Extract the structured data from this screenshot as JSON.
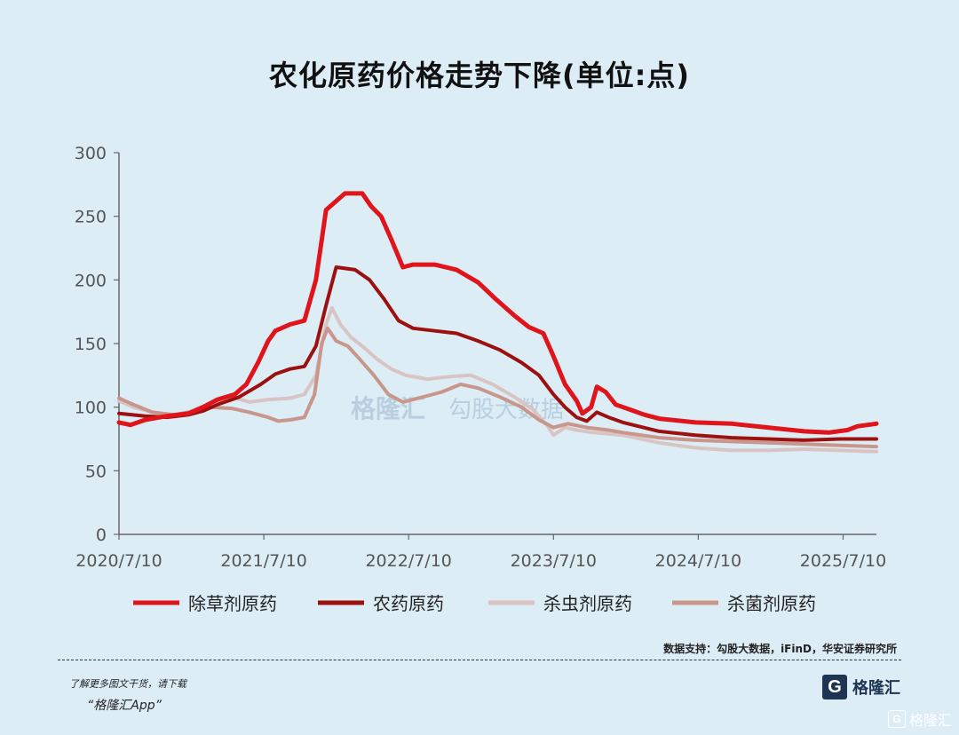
{
  "chart_data": {
    "type": "line",
    "title": "农化原药价格走势下降(单位:点)",
    "ylim": [
      0,
      300
    ],
    "y_ticks": [
      0,
      50,
      100,
      150,
      200,
      250,
      300
    ],
    "x_tick_labels": [
      "2020/7/10",
      "2021/7/10",
      "2022/7/10",
      "2023/7/10",
      "2024/7/10",
      "2025/7/10"
    ],
    "x_tick_positions": [
      2020.52,
      2021.52,
      2022.52,
      2023.52,
      2024.52,
      2025.52
    ],
    "xlim": [
      2020.52,
      2025.75
    ],
    "grid": false,
    "legend_position": "bottom",
    "series": [
      {
        "name": "除草剂原药",
        "color": "#e0141b",
        "width": 5,
        "points": [
          [
            2020.52,
            88
          ],
          [
            2020.6,
            86
          ],
          [
            2020.7,
            90
          ],
          [
            2020.85,
            93
          ],
          [
            2021.0,
            95
          ],
          [
            2021.1,
            100
          ],
          [
            2021.2,
            106
          ],
          [
            2021.32,
            110
          ],
          [
            2021.4,
            118
          ],
          [
            2021.48,
            135
          ],
          [
            2021.55,
            152
          ],
          [
            2021.6,
            160
          ],
          [
            2021.7,
            165
          ],
          [
            2021.8,
            168
          ],
          [
            2021.88,
            200
          ],
          [
            2021.95,
            255
          ],
          [
            2022.02,
            262
          ],
          [
            2022.08,
            268
          ],
          [
            2022.2,
            268
          ],
          [
            2022.26,
            258
          ],
          [
            2022.33,
            250
          ],
          [
            2022.4,
            232
          ],
          [
            2022.48,
            210
          ],
          [
            2022.55,
            212
          ],
          [
            2022.7,
            212
          ],
          [
            2022.85,
            208
          ],
          [
            2023.0,
            198
          ],
          [
            2023.12,
            185
          ],
          [
            2023.25,
            172
          ],
          [
            2023.35,
            163
          ],
          [
            2023.45,
            158
          ],
          [
            2023.52,
            140
          ],
          [
            2023.6,
            118
          ],
          [
            2023.68,
            105
          ],
          [
            2023.72,
            95
          ],
          [
            2023.78,
            100
          ],
          [
            2023.82,
            116
          ],
          [
            2023.88,
            112
          ],
          [
            2023.95,
            102
          ],
          [
            2024.05,
            98
          ],
          [
            2024.15,
            94
          ],
          [
            2024.25,
            91
          ],
          [
            2024.5,
            88
          ],
          [
            2024.75,
            87
          ],
          [
            2025.0,
            84
          ],
          [
            2025.25,
            81
          ],
          [
            2025.42,
            80
          ],
          [
            2025.55,
            82
          ],
          [
            2025.62,
            85
          ],
          [
            2025.75,
            87
          ]
        ]
      },
      {
        "name": "农药原药",
        "color": "#9c1010",
        "width": 4,
        "points": [
          [
            2020.52,
            95
          ],
          [
            2020.7,
            93
          ],
          [
            2020.85,
            92
          ],
          [
            2021.0,
            94
          ],
          [
            2021.1,
            97
          ],
          [
            2021.2,
            102
          ],
          [
            2021.35,
            108
          ],
          [
            2021.5,
            118
          ],
          [
            2021.6,
            126
          ],
          [
            2021.7,
            130
          ],
          [
            2021.8,
            132
          ],
          [
            2021.88,
            148
          ],
          [
            2021.95,
            180
          ],
          [
            2022.02,
            210
          ],
          [
            2022.15,
            208
          ],
          [
            2022.25,
            200
          ],
          [
            2022.35,
            185
          ],
          [
            2022.45,
            168
          ],
          [
            2022.55,
            162
          ],
          [
            2022.7,
            160
          ],
          [
            2022.85,
            158
          ],
          [
            2023.0,
            152
          ],
          [
            2023.15,
            145
          ],
          [
            2023.3,
            135
          ],
          [
            2023.42,
            125
          ],
          [
            2023.52,
            110
          ],
          [
            2023.6,
            100
          ],
          [
            2023.68,
            92
          ],
          [
            2023.75,
            89
          ],
          [
            2023.82,
            96
          ],
          [
            2023.9,
            92
          ],
          [
            2024.0,
            88
          ],
          [
            2024.25,
            81
          ],
          [
            2024.5,
            78
          ],
          [
            2024.75,
            76
          ],
          [
            2025.0,
            75
          ],
          [
            2025.25,
            74
          ],
          [
            2025.5,
            75
          ],
          [
            2025.75,
            75
          ]
        ]
      },
      {
        "name": "杀虫剂原药",
        "color": "#d9c4c4",
        "width": 4,
        "points": [
          [
            2020.52,
            105
          ],
          [
            2020.62,
            100
          ],
          [
            2020.75,
            96
          ],
          [
            2020.9,
            94
          ],
          [
            2021.0,
            96
          ],
          [
            2021.15,
            103
          ],
          [
            2021.3,
            108
          ],
          [
            2021.42,
            104
          ],
          [
            2021.55,
            106
          ],
          [
            2021.7,
            107
          ],
          [
            2021.8,
            110
          ],
          [
            2021.88,
            125
          ],
          [
            2021.95,
            165
          ],
          [
            2021.99,
            178
          ],
          [
            2022.05,
            165
          ],
          [
            2022.12,
            155
          ],
          [
            2022.2,
            148
          ],
          [
            2022.3,
            138
          ],
          [
            2022.4,
            130
          ],
          [
            2022.5,
            125
          ],
          [
            2022.65,
            122
          ],
          [
            2022.8,
            124
          ],
          [
            2022.95,
            125
          ],
          [
            2023.1,
            118
          ],
          [
            2023.25,
            108
          ],
          [
            2023.38,
            98
          ],
          [
            2023.48,
            85
          ],
          [
            2023.52,
            78
          ],
          [
            2023.6,
            84
          ],
          [
            2023.68,
            82
          ],
          [
            2023.8,
            80
          ],
          [
            2024.0,
            78
          ],
          [
            2024.25,
            72
          ],
          [
            2024.5,
            68
          ],
          [
            2024.75,
            66
          ],
          [
            2025.0,
            66
          ],
          [
            2025.25,
            67
          ],
          [
            2025.5,
            66
          ],
          [
            2025.75,
            65
          ]
        ]
      },
      {
        "name": "杀菌剂原药",
        "color": "#c9968b",
        "width": 4,
        "points": [
          [
            2020.52,
            107
          ],
          [
            2020.62,
            102
          ],
          [
            2020.75,
            96
          ],
          [
            2020.9,
            94
          ],
          [
            2021.0,
            96
          ],
          [
            2021.15,
            100
          ],
          [
            2021.3,
            99
          ],
          [
            2021.42,
            96
          ],
          [
            2021.55,
            92
          ],
          [
            2021.62,
            89
          ],
          [
            2021.7,
            90
          ],
          [
            2021.8,
            92
          ],
          [
            2021.87,
            110
          ],
          [
            2021.92,
            150
          ],
          [
            2021.96,
            162
          ],
          [
            2022.02,
            152
          ],
          [
            2022.1,
            148
          ],
          [
            2022.18,
            138
          ],
          [
            2022.28,
            125
          ],
          [
            2022.38,
            110
          ],
          [
            2022.48,
            104
          ],
          [
            2022.62,
            108
          ],
          [
            2022.75,
            112
          ],
          [
            2022.88,
            118
          ],
          [
            2023.0,
            115
          ],
          [
            2023.15,
            108
          ],
          [
            2023.3,
            100
          ],
          [
            2023.42,
            90
          ],
          [
            2023.52,
            84
          ],
          [
            2023.62,
            87
          ],
          [
            2023.75,
            84
          ],
          [
            2023.9,
            82
          ],
          [
            2024.0,
            80
          ],
          [
            2024.25,
            76
          ],
          [
            2024.5,
            74
          ],
          [
            2024.75,
            73
          ],
          [
            2025.0,
            72
          ],
          [
            2025.25,
            71
          ],
          [
            2025.5,
            70
          ],
          [
            2025.75,
            69
          ]
        ]
      }
    ],
    "watermark": {
      "brand": "格隆汇",
      "brand2": "勾股大数据"
    }
  },
  "source_label": "数据支持：勾股大数据，iFinD，华安证券研究所",
  "footer": {
    "note": "了解更多图文干货，请下载",
    "app": "“格隆汇App”",
    "logo_letter": "G",
    "logo_text": "格隆汇"
  },
  "corner_watermark": "格隆汇"
}
